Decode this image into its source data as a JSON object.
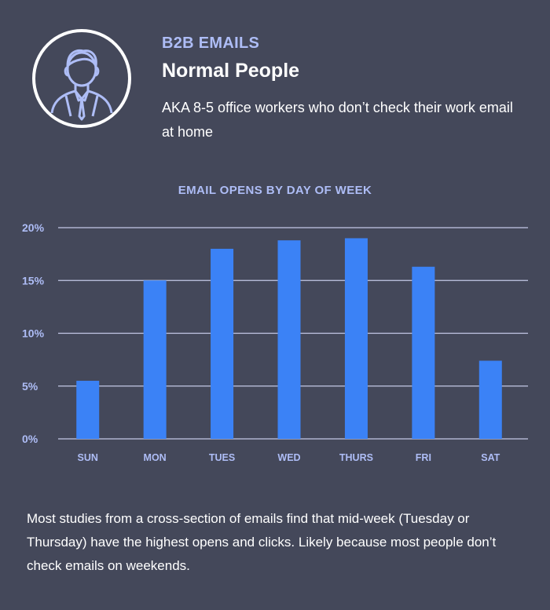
{
  "header": {
    "eyebrow": "B2B EMAILS",
    "headline": "Normal People",
    "subtext": "AKA 8-5 office workers who don’t check their work email at home"
  },
  "avatar": {
    "icon": "person-avatar-icon"
  },
  "colors": {
    "background": "#44485a",
    "bar": "#3b82f6",
    "accent_text": "#aebdf6",
    "gridline": "#c3c8e6"
  },
  "chart_data": {
    "type": "bar",
    "title": "EMAIL OPENS BY DAY OF WEEK",
    "categories": [
      "SUN",
      "MON",
      "TUES",
      "WED",
      "THURS",
      "FRI",
      "SAT"
    ],
    "values": [
      5.5,
      15.0,
      18.0,
      18.8,
      19.0,
      16.3,
      7.4
    ],
    "ylim": [
      0,
      20
    ],
    "yticks": [
      0,
      5,
      10,
      15,
      20
    ],
    "ytick_labels": [
      "0%",
      "5%",
      "10%",
      "15%",
      "20%"
    ],
    "grid": true,
    "xlabel": "",
    "ylabel": ""
  },
  "footer": {
    "text": "Most studies from a cross-section of emails find that mid-week (Tuesday or Thursday) have the highest opens and clicks. Likely because most people don’t check emails on weekends."
  }
}
